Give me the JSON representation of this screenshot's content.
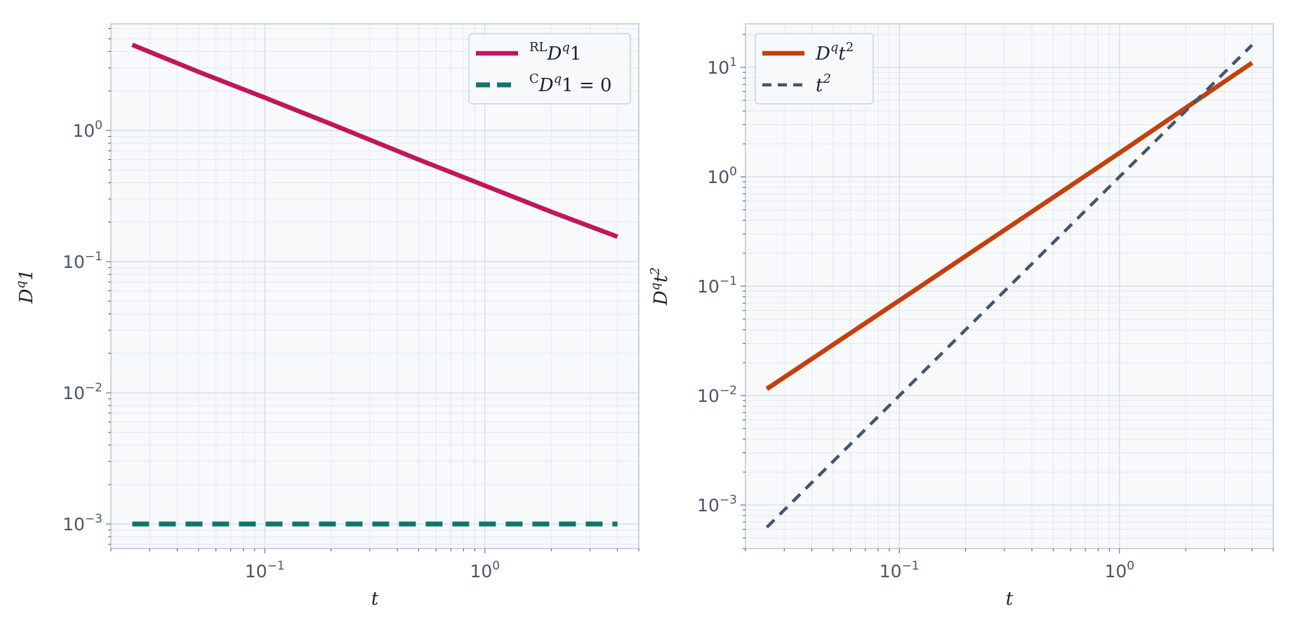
{
  "chart_data": [
    {
      "type": "line",
      "xscale": "log",
      "yscale": "log",
      "xlim": [
        0.02,
        5.0
      ],
      "ylim": [
        0.00065,
        6.5
      ],
      "xticks": [
        0.1,
        1
      ],
      "yticks": [
        0.001,
        0.01,
        0.1,
        1
      ],
      "xlabel": {
        "base": "t",
        "sup": ""
      },
      "ylabel": {
        "base": "D",
        "sup": "q",
        "tail": "1"
      },
      "grid": true,
      "legend_position": "top-right",
      "series": [
        {
          "name": "RL_Dq1",
          "label": {
            "pre": "RL",
            "base": "D",
            "sup": "q",
            "tail": "1"
          },
          "color": "#be185d",
          "dash": "solid",
          "x": [
            0.025,
            0.05,
            0.1,
            0.2,
            0.5,
            1,
            2,
            4
          ],
          "y": [
            4.5,
            2.8,
            1.78,
            1.12,
            0.6,
            0.38,
            0.24,
            0.155
          ]
        },
        {
          "name": "C_Dq1",
          "label": {
            "pre": "C",
            "base": "D",
            "sup": "q",
            "tail": "1 = 0"
          },
          "color": "#0f766e",
          "dash": "dashed",
          "x": [
            0.025,
            4
          ],
          "y": [
            0.001,
            0.001
          ]
        }
      ]
    },
    {
      "type": "line",
      "xscale": "log",
      "yscale": "log",
      "xlim": [
        0.02,
        5.0
      ],
      "ylim": [
        0.0004,
        25
      ],
      "xticks": [
        0.1,
        1
      ],
      "yticks": [
        0.001,
        0.01,
        0.1,
        1,
        10
      ],
      "xlabel": {
        "base": "t",
        "sup": ""
      },
      "ylabel": {
        "base": "D",
        "sup": "q",
        "tail": "t",
        "tailsup": "2"
      },
      "grid": true,
      "legend_position": "top-left",
      "series": [
        {
          "name": "Dq_t2",
          "label": {
            "pre": "",
            "base": "D",
            "sup": "q",
            "tail": "t",
            "tailsup": "2"
          },
          "color": "#c2410c",
          "dash": "solid",
          "x": [
            0.025,
            0.1,
            1,
            4
          ],
          "y": [
            0.0115,
            0.074,
            1.65,
            11
          ]
        },
        {
          "name": "t2",
          "label": {
            "pre": "",
            "base": "t",
            "sup": "2",
            "tail": ""
          },
          "color": "#475569",
          "dash": "dashed",
          "x": [
            0.025,
            0.1,
            1,
            4
          ],
          "y": [
            0.000625,
            0.01,
            1,
            16
          ]
        }
      ]
    }
  ]
}
